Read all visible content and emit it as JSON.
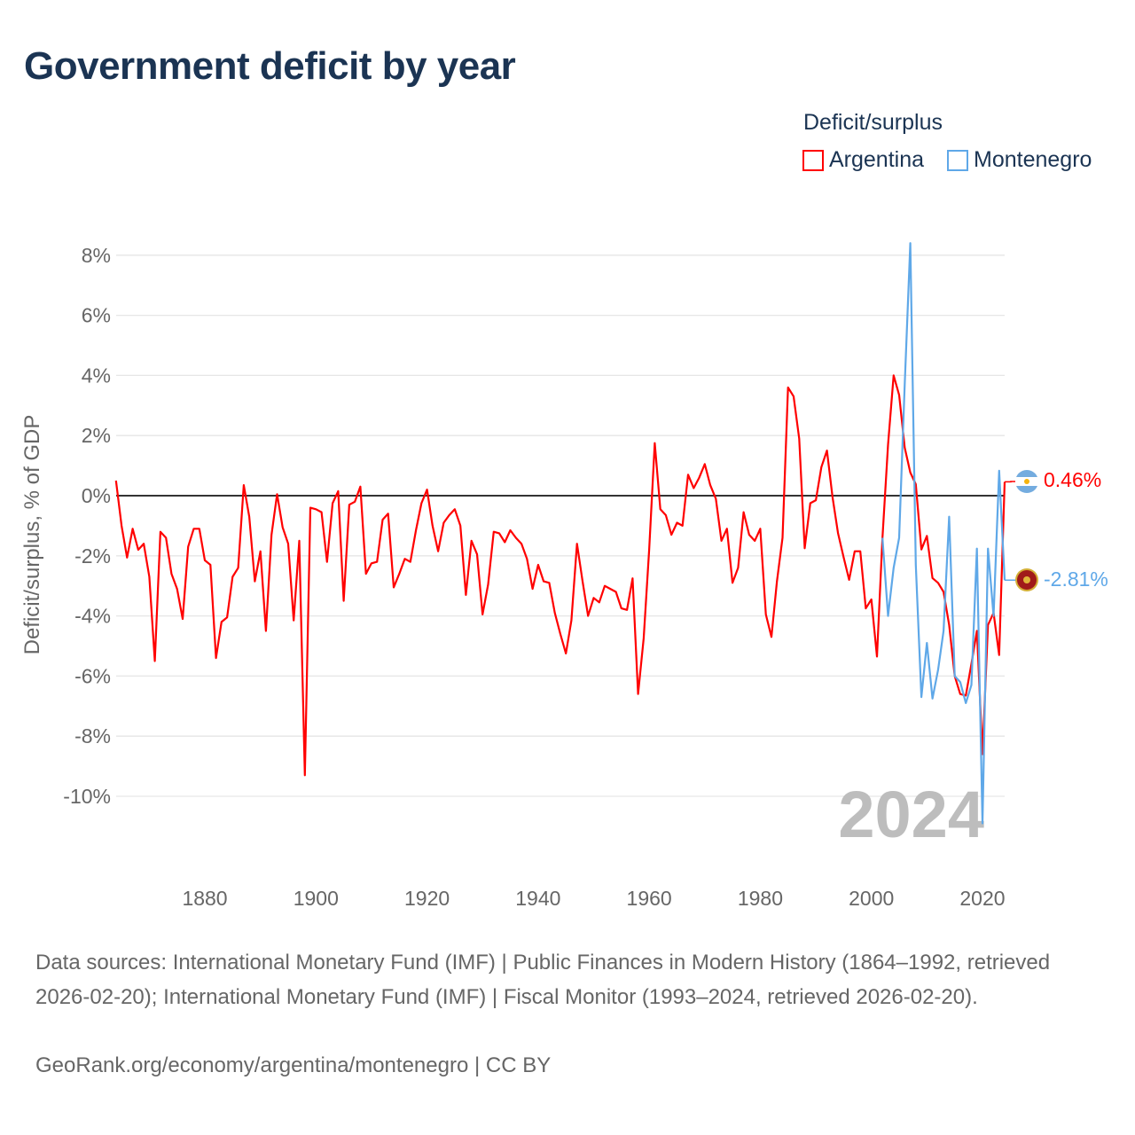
{
  "title": "Government deficit by year",
  "legend": {
    "title": "Deficit/surplus",
    "items": [
      {
        "label": "Argentina",
        "color": "#ff0000"
      },
      {
        "label": "Montenegro",
        "color": "#5fa8e8"
      }
    ]
  },
  "watermark_year": "2024",
  "end_labels": {
    "argentina": "0.46%",
    "montenegro": "-2.81%"
  },
  "footer": {
    "sources": "Data sources: International Monetary Fund (IMF) | Public Finances in Modern History (1864–1992, retrieved 2026-02-20); International Monetary Fund (IMF) | Fiscal Monitor (1993–2024, retrieved 2026-02-20).",
    "credit": "GeoRank.org/economy/argentina/montenegro | CC BY"
  },
  "chart_data": {
    "type": "line",
    "title": "Government deficit by year",
    "xlabel": "",
    "ylabel": "Deficit/surplus, % of GDP",
    "xlim": [
      1864,
      2024
    ],
    "ylim": [
      -11.5,
      8.5
    ],
    "xticks": [
      1880,
      1900,
      1920,
      1940,
      1960,
      1980,
      2000,
      2020
    ],
    "xtick_labels": [
      "1880",
      "1900",
      "1920",
      "1940",
      "1960",
      "1980",
      "2000",
      "2020"
    ],
    "yticks": [
      8,
      6,
      4,
      2,
      0,
      -2,
      -4,
      -6,
      -8,
      -10
    ],
    "ytick_labels": [
      "8%",
      "6%",
      "4%",
      "2%",
      "0%",
      "-2%",
      "-4%",
      "-6%",
      "-8%",
      "-10%"
    ],
    "grid": true,
    "legend_position": "top-right",
    "series": [
      {
        "name": "Argentina",
        "color": "#ff0000",
        "start_year": 1864,
        "values": [
          0.5,
          -1.0,
          -2.06,
          -1.1,
          -1.8,
          -1.6,
          -2.7,
          -5.5,
          -1.2,
          -1.4,
          -2.6,
          -3.1,
          -4.1,
          -1.7,
          -1.1,
          -1.1,
          -2.15,
          -2.3,
          -5.4,
          -4.2,
          -4.05,
          -2.7,
          -2.4,
          0.35,
          -0.7,
          -2.85,
          -1.85,
          -4.5,
          -1.3,
          0.05,
          -1.05,
          -1.6,
          -4.15,
          -1.5,
          -9.3,
          -0.4,
          -0.45,
          -0.55,
          -2.2,
          -0.25,
          0.15,
          -3.5,
          -0.3,
          -0.2,
          0.3,
          -2.6,
          -2.25,
          -2.2,
          -0.8,
          -0.6,
          -3.05,
          -2.6,
          -2.1,
          -2.2,
          -1.15,
          -0.25,
          0.2,
          -1.0,
          -1.85,
          -0.9,
          -0.65,
          -0.45,
          -1.0,
          -3.3,
          -1.5,
          -1.95,
          -3.95,
          -2.95,
          -1.2,
          -1.25,
          -1.55,
          -1.15,
          -1.4,
          -1.6,
          -2.1,
          -3.1,
          -2.3,
          -2.85,
          -2.9,
          -3.9,
          -4.6,
          -5.25,
          -4.15,
          -1.6,
          -2.85,
          -4.0,
          -3.4,
          -3.55,
          -3.0,
          -3.1,
          -3.2,
          -3.75,
          -3.8,
          -2.75,
          -6.6,
          -4.75,
          -1.8,
          1.75,
          -0.45,
          -0.65,
          -1.3,
          -0.9,
          -1.0,
          0.7,
          0.25,
          0.6,
          1.05,
          0.35,
          -0.1,
          -1.5,
          -1.1,
          -2.9,
          -2.4,
          -0.55,
          -1.3,
          -1.5,
          -1.1,
          -3.95,
          -4.7,
          -2.85,
          -1.4,
          3.6,
          3.3,
          1.9,
          -1.75,
          -0.25,
          -0.15,
          0.95,
          1.5,
          -0.05,
          -1.25,
          -2.05,
          -2.8,
          -1.85,
          -1.85,
          -3.75,
          -3.45,
          -5.35,
          -1.4,
          1.7,
          4.0,
          3.35,
          1.6,
          0.77,
          0.38,
          -1.79,
          -1.34,
          -2.74,
          -2.9,
          -3.2,
          -4.3,
          -6.0,
          -6.6,
          -6.65,
          -5.6,
          -4.5,
          -8.6,
          -4.3,
          -3.9,
          -5.3,
          0.46
        ]
      },
      {
        "name": "Montenegro",
        "color": "#5fa8e8",
        "start_year": 2002,
        "values": [
          -1.4,
          -4.0,
          -2.4,
          -1.4,
          3.7,
          8.4,
          -2.3,
          -6.7,
          -4.9,
          -6.75,
          -5.8,
          -4.5,
          -0.7,
          -6.0,
          -6.2,
          -6.9,
          -6.3,
          -1.76,
          -10.9,
          -1.76,
          -4.0,
          0.83,
          -2.81
        ]
      }
    ]
  }
}
